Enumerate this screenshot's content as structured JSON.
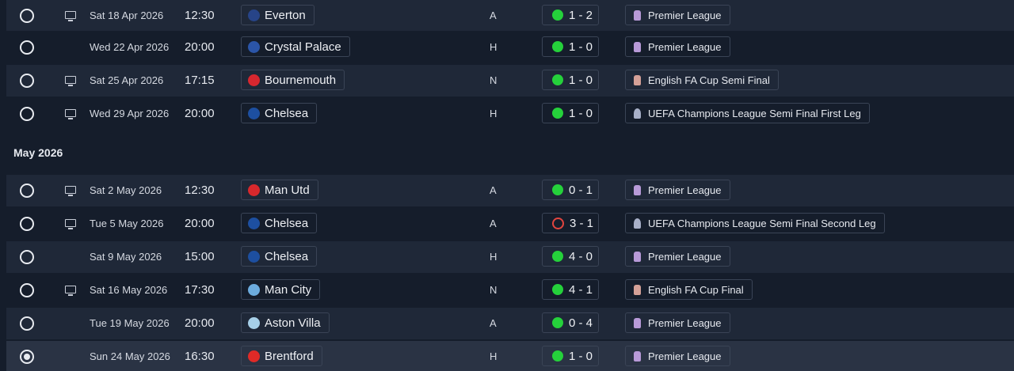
{
  "month_header": "May 2026",
  "colors": {
    "win": "#25d13b",
    "loss": "#e2453f",
    "row_odd": "#1f2838",
    "row_even": "#151d2b"
  },
  "fixtures": [
    {
      "date": "Sat 18 Apr 2026",
      "time": "12:30",
      "opponent": "Everton",
      "crest_color": "#274488",
      "venue": "A",
      "outcome": "win",
      "score": "1 - 2",
      "competition": "Premier League",
      "comp_icon": "pl",
      "tv": true,
      "selected": false
    },
    {
      "date": "Wed 22 Apr 2026",
      "time": "20:00",
      "opponent": "Crystal Palace",
      "crest_color": "#2b55a8",
      "venue": "H",
      "outcome": "win",
      "score": "1 - 0",
      "competition": "Premier League",
      "comp_icon": "pl",
      "tv": false,
      "selected": false
    },
    {
      "date": "Sat 25 Apr 2026",
      "time": "17:15",
      "opponent": "Bournemouth",
      "crest_color": "#d7272f",
      "venue": "N",
      "outcome": "win",
      "score": "1 - 0",
      "competition": "English FA Cup Semi Final",
      "comp_icon": "fa",
      "tv": true,
      "selected": false
    },
    {
      "date": "Wed 29 Apr 2026",
      "time": "20:00",
      "opponent": "Chelsea",
      "crest_color": "#1d4fa0",
      "venue": "H",
      "outcome": "win",
      "score": "1 - 0",
      "competition": "UEFA Champions League Semi Final First Leg",
      "comp_icon": "ucl",
      "tv": true,
      "selected": false
    },
    {
      "date": "Sat 2 May 2026",
      "time": "12:30",
      "opponent": "Man Utd",
      "crest_color": "#d8282c",
      "venue": "A",
      "outcome": "win",
      "score": "0 - 1",
      "competition": "Premier League",
      "comp_icon": "pl",
      "tv": true,
      "selected": false
    },
    {
      "date": "Tue 5 May 2026",
      "time": "20:00",
      "opponent": "Chelsea",
      "crest_color": "#1d4fa0",
      "venue": "A",
      "outcome": "loss",
      "score": "3 - 1",
      "competition": "UEFA Champions League Semi Final Second Leg",
      "comp_icon": "ucl",
      "tv": true,
      "selected": false
    },
    {
      "date": "Sat 9 May 2026",
      "time": "15:00",
      "opponent": "Chelsea",
      "crest_color": "#1d4fa0",
      "venue": "H",
      "outcome": "win",
      "score": "4 - 0",
      "competition": "Premier League",
      "comp_icon": "pl",
      "tv": false,
      "selected": false
    },
    {
      "date": "Sat 16 May 2026",
      "time": "17:30",
      "opponent": "Man City",
      "crest_color": "#6cabdd",
      "venue": "N",
      "outcome": "win",
      "score": "4 - 1",
      "competition": "English FA Cup Final",
      "comp_icon": "fa",
      "tv": true,
      "selected": false
    },
    {
      "date": "Tue 19 May 2026",
      "time": "20:00",
      "opponent": "Aston Villa",
      "crest_color": "#a6cfe8",
      "venue": "A",
      "outcome": "win",
      "score": "0 - 4",
      "competition": "Premier League",
      "comp_icon": "pl",
      "tv": false,
      "selected": false
    },
    {
      "date": "Sun 24 May 2026",
      "time": "16:30",
      "opponent": "Brentford",
      "crest_color": "#e02a27",
      "venue": "H",
      "outcome": "win",
      "score": "1 - 0",
      "competition": "Premier League",
      "comp_icon": "pl",
      "tv": false,
      "selected": true
    }
  ]
}
